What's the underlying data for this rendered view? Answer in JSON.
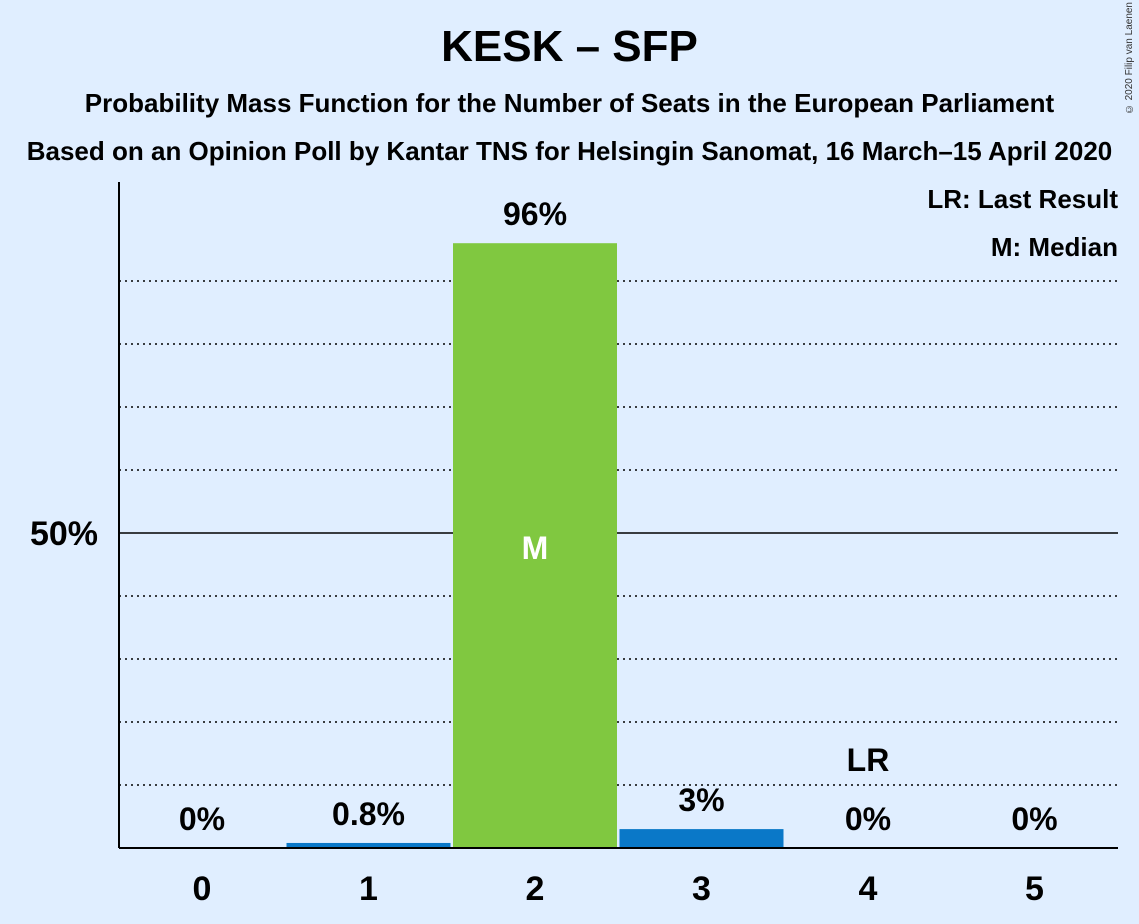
{
  "title": "KESK – SFP",
  "subtitle": "Probability Mass Function for the Number of Seats in the European Parliament",
  "source": "Based on an Opinion Poll by Kantar TNS for Helsingin Sanomat, 16 March–15 April 2020",
  "copyright": "© 2020 Filip van Laenen",
  "legend": {
    "last_result": "LR: Last Result",
    "median": "M: Median"
  },
  "colors": {
    "background": "#e0eeff",
    "median_bar": "#80c840",
    "bar": "#0a78c8",
    "median_text": "#ffffff"
  },
  "chart_data": {
    "type": "bar",
    "categories": [
      "0",
      "1",
      "2",
      "3",
      "4",
      "5"
    ],
    "values": [
      0,
      0.8,
      96,
      3,
      0,
      0
    ],
    "value_labels": [
      "0%",
      "0.8%",
      "96%",
      "3%",
      "0%",
      "0%"
    ],
    "ylim": [
      0,
      100
    ],
    "ytick_label": "50%",
    "ytick_value": 50,
    "grid_values": [
      10,
      20,
      30,
      40,
      60,
      70,
      80,
      90
    ],
    "median_category": "2",
    "median_marker": "M",
    "last_result_category": "4",
    "last_result_marker": "LR"
  }
}
